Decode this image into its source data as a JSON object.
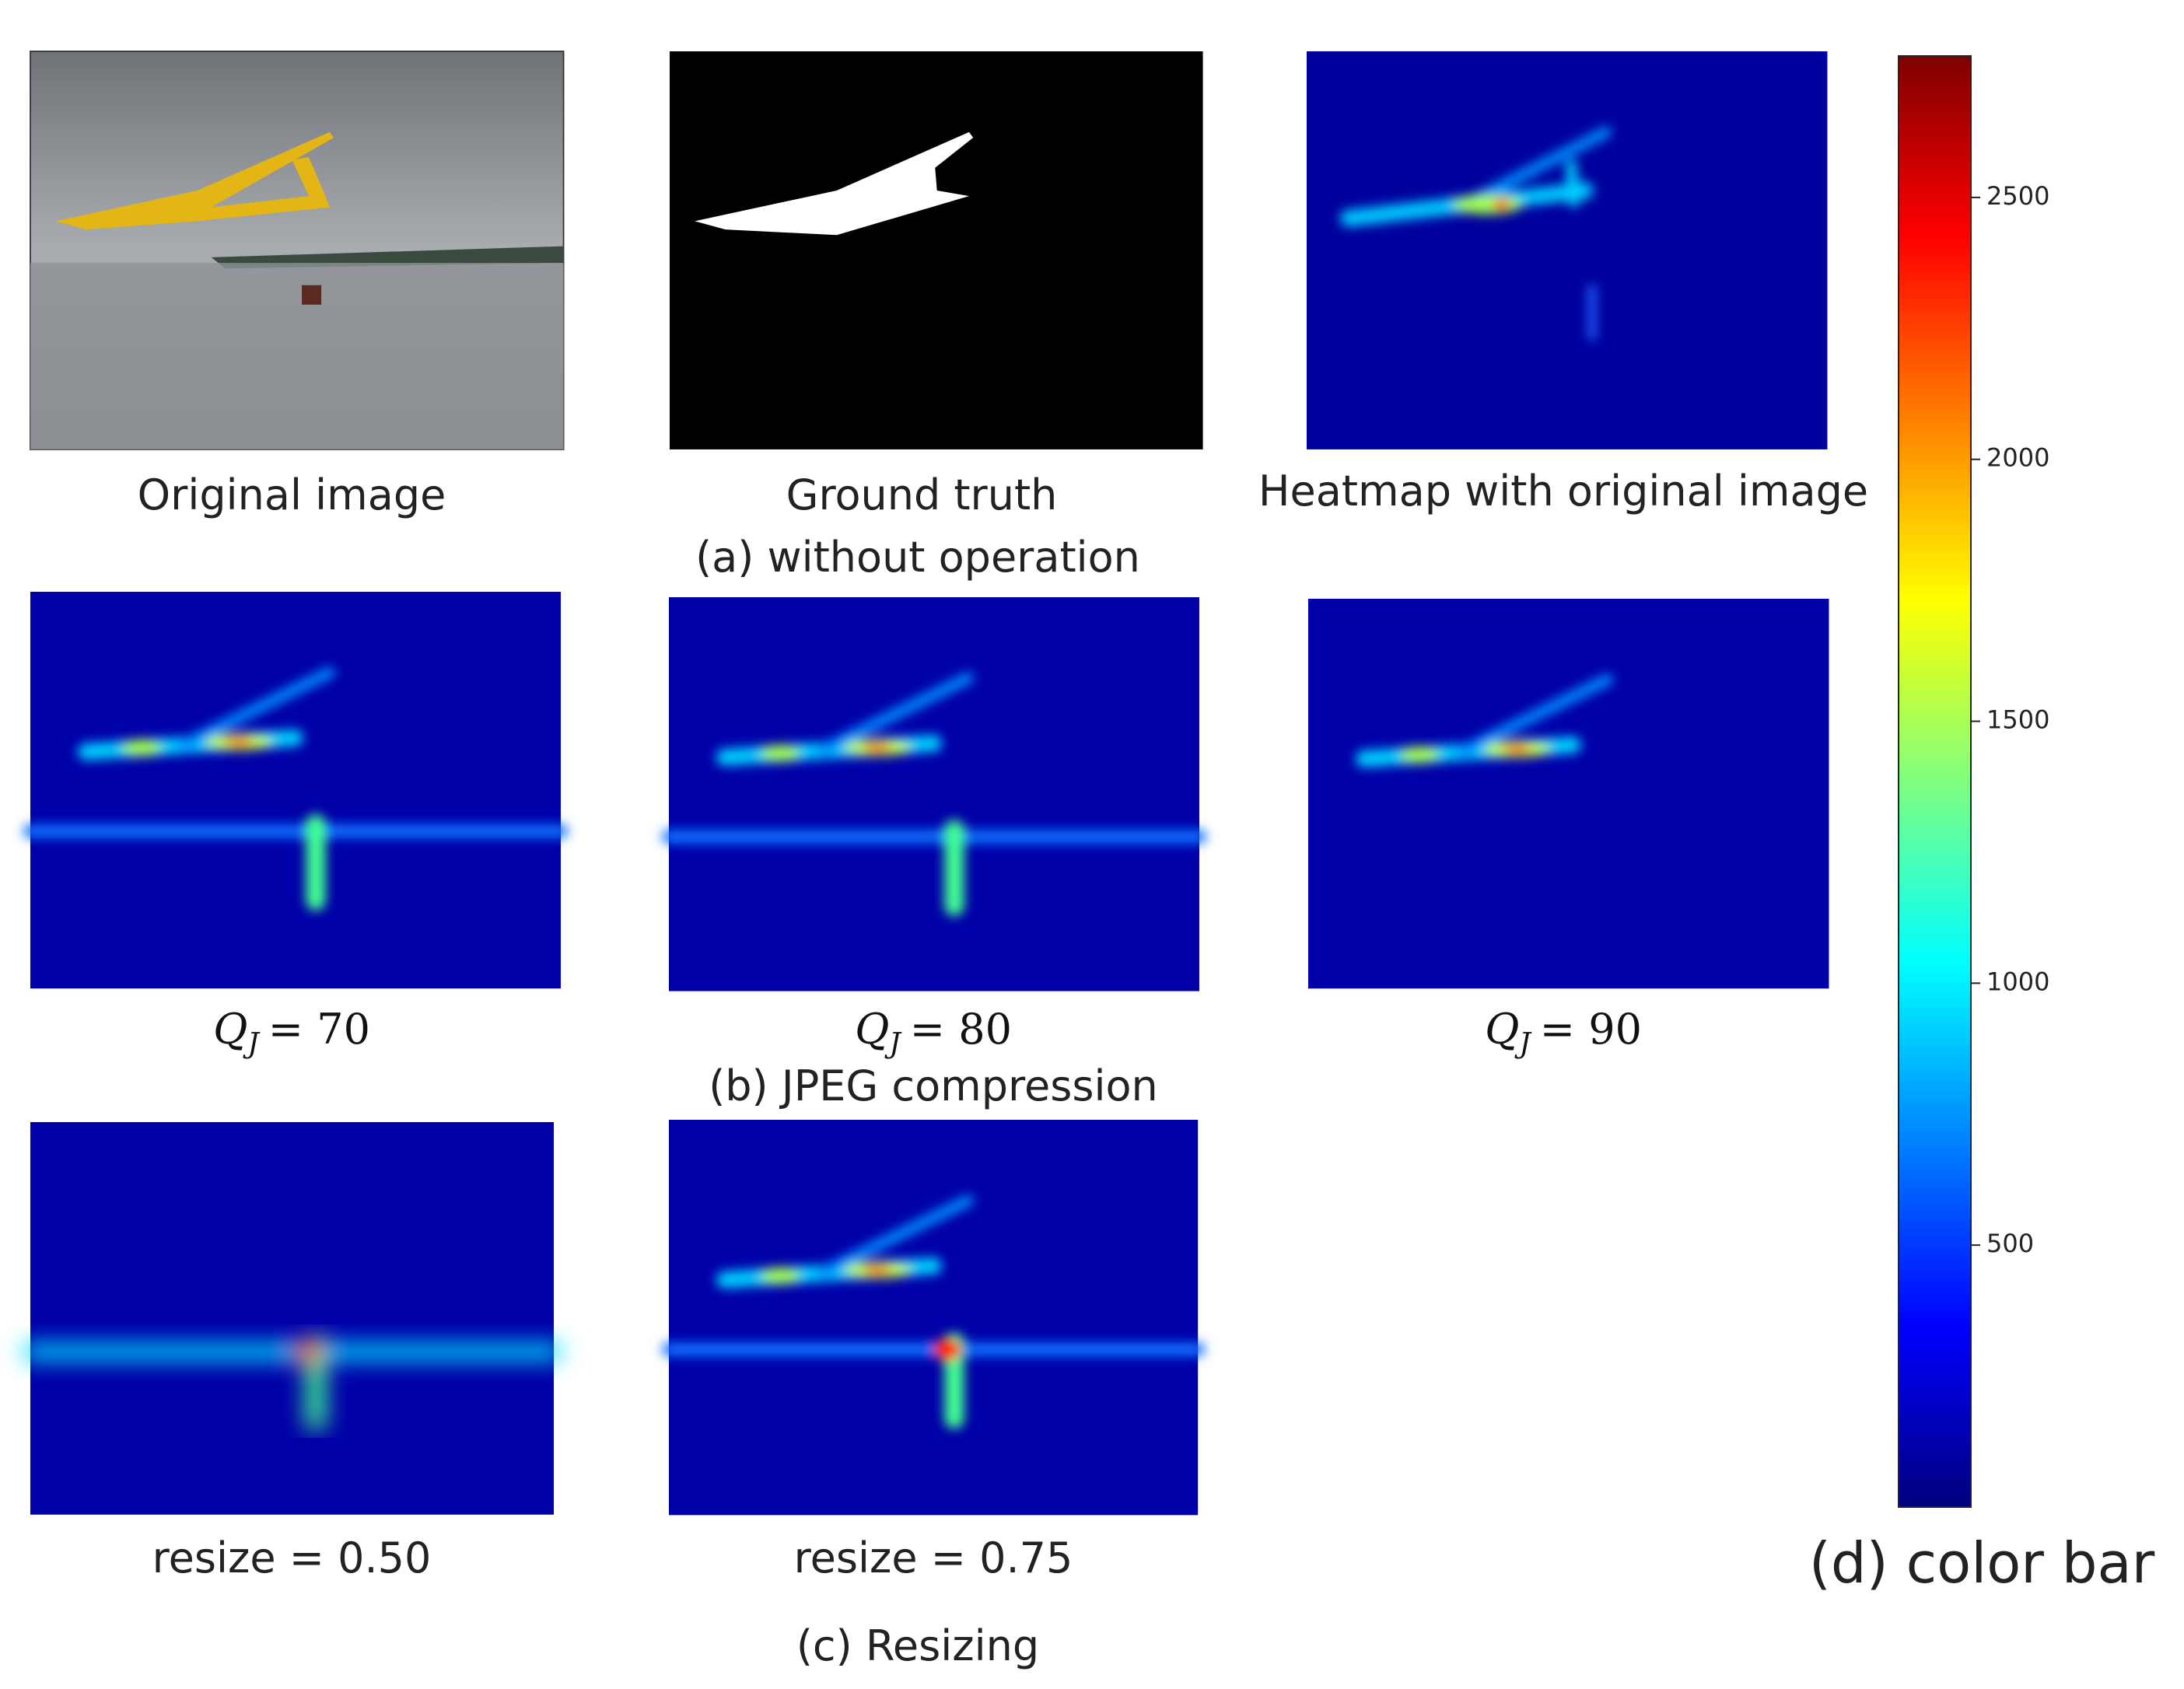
{
  "panels": {
    "a": {
      "captions": [
        "Original image",
        "Ground truth",
        "Heatmap with  original image"
      ],
      "label": "(a) without operation"
    },
    "b": {
      "captions": [
        {
          "symbol": "Q",
          "subscript": "J",
          "text": "= 70"
        },
        {
          "symbol": "Q",
          "subscript": "J",
          "text": "= 80"
        },
        {
          "symbol": "Q",
          "subscript": "J",
          "text": "= 90"
        }
      ],
      "label": "(b) JPEG compression"
    },
    "c": {
      "captions": [
        "resize = 0.50",
        "resize = 0.75"
      ],
      "label": "(c) Resizing"
    }
  },
  "colorbar": {
    "label": "(d) color bar",
    "lim": [
      0,
      2770
    ],
    "ticks": [
      500,
      1000,
      1500,
      2000,
      2500
    ]
  }
}
